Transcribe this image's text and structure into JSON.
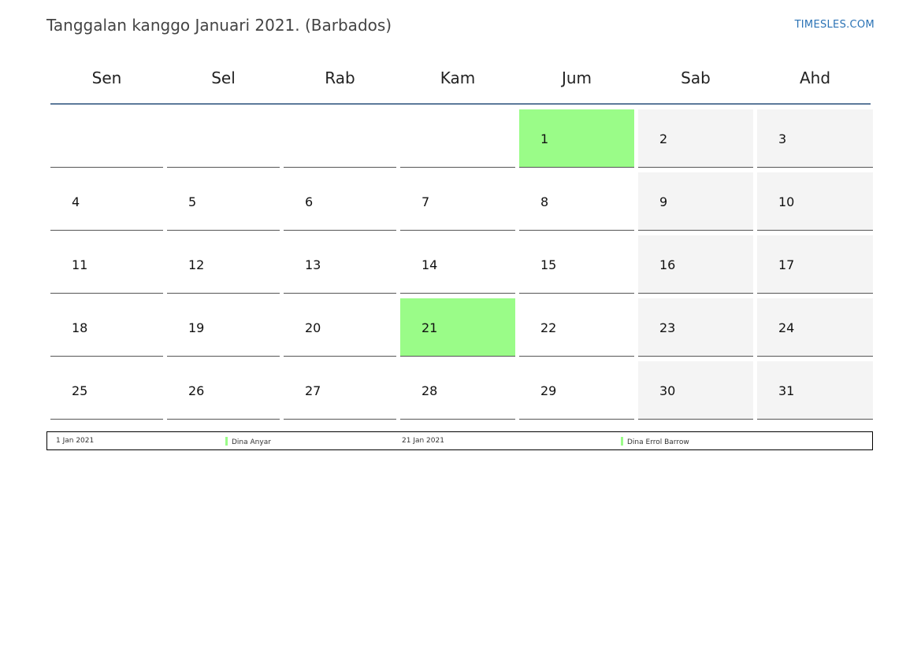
{
  "title": "Tanggalan kanggo Januari 2021. (Barbados)",
  "brand": "TIMESLES.COM",
  "weekdays": [
    "Sen",
    "Sel",
    "Rab",
    "Kam",
    "Jum",
    "Sab",
    "Ahd"
  ],
  "weeks": [
    [
      "",
      "",
      "",
      "",
      "1",
      "2",
      "3"
    ],
    [
      "4",
      "5",
      "6",
      "7",
      "8",
      "9",
      "10"
    ],
    [
      "11",
      "12",
      "13",
      "14",
      "15",
      "16",
      "17"
    ],
    [
      "18",
      "19",
      "20",
      "21",
      "22",
      "23",
      "24"
    ],
    [
      "25",
      "26",
      "27",
      "28",
      "29",
      "30",
      "31"
    ]
  ],
  "holiday_days": [
    "1",
    "21"
  ],
  "colors": {
    "holiday": "#9afc88",
    "weekend": "#f4f4f4",
    "header_rule": "#5d7a9a",
    "brand": "#2a72b5"
  },
  "legend": [
    {
      "date": "1 Jan 2021",
      "name": "Dina Anyar"
    },
    {
      "date": "21 Jan 2021",
      "name": "Dina Errol Barrow"
    }
  ]
}
